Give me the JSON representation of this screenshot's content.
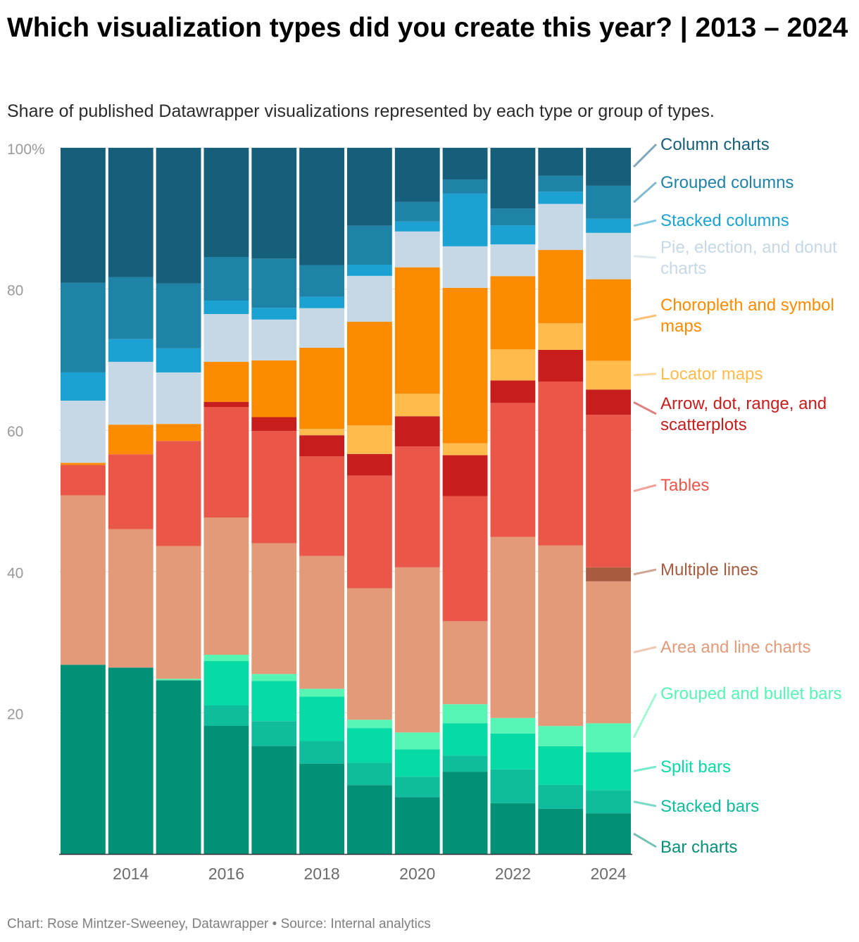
{
  "title": "Which visualization types did you create this year? | 2013 – 2024",
  "subtitle": "Share of published Datawrapper visualizations represented by each type or group of types.",
  "footer": "Chart: Rose Mintzer-Sweeney, Datawrapper • Source: Internal analytics",
  "chart_data": {
    "type": "bar",
    "stacked": true,
    "years": [
      2013,
      2014,
      2015,
      2016,
      2017,
      2018,
      2019,
      2020,
      2021,
      2022,
      2023,
      2024
    ],
    "x_tick_labels": [
      "2014",
      "2016",
      "2018",
      "2020",
      "2022",
      "2024"
    ],
    "y_ticks": [
      {
        "value": 100,
        "label": "100%"
      },
      {
        "value": 80,
        "label": "80"
      },
      {
        "value": 60,
        "label": "60"
      },
      {
        "value": 40,
        "label": "40"
      },
      {
        "value": 20,
        "label": "20"
      }
    ],
    "ylim": [
      0,
      100
    ],
    "legend_position": "right",
    "series": [
      {
        "name": "Bar charts",
        "color": "#029076",
        "values": [
          26.8,
          26.4,
          24.6,
          18.2,
          15.6,
          12.8,
          9.9,
          8.1,
          11.7,
          7.2,
          6.3,
          5.8
        ]
      },
      {
        "name": "Stacked bars",
        "color": "#0fbd9c",
        "values": [
          0,
          0,
          0,
          2.9,
          3.6,
          3.2,
          3.2,
          2.9,
          2.3,
          4.8,
          3.3,
          3.3
        ]
      },
      {
        "name": "Split bars",
        "color": "#06dba5",
        "values": [
          0,
          0,
          0,
          6.3,
          5.8,
          6.3,
          5.0,
          3.9,
          4.6,
          5.1,
          5.4,
          5.4
        ]
      },
      {
        "name": "Grouped and bullet bars",
        "color": "#57f5b4",
        "values": [
          0,
          0,
          0.2,
          0.9,
          1.0,
          1.1,
          1.2,
          2.4,
          2.7,
          2.2,
          2.8,
          4.1
        ]
      },
      {
        "name": "Area and line charts",
        "color": "#e39a79",
        "values": [
          24.0,
          19.6,
          18.8,
          19.5,
          18.9,
          18.8,
          18.9,
          23.5,
          11.8,
          25.7,
          25.1,
          20.2
        ]
      },
      {
        "name": "Multiple lines",
        "color": "#a85b3f",
        "values": [
          0,
          0,
          0,
          0,
          0,
          0,
          0,
          0,
          0,
          0,
          0,
          2.0
        ]
      },
      {
        "name": "Tables",
        "color": "#ea5648",
        "values": [
          4.3,
          10.6,
          14.9,
          15.7,
          16.2,
          14.1,
          16.2,
          17.2,
          17.8,
          19.0,
          22.8,
          21.7
        ]
      },
      {
        "name": "Arrow, dot, range, and scatterplots",
        "color": "#c81d1d",
        "values": [
          0,
          0,
          0,
          0.7,
          2.0,
          3.0,
          3.1,
          4.3,
          5.8,
          3.2,
          4.4,
          3.6
        ]
      },
      {
        "name": "Locator maps",
        "color": "#ffbb4b",
        "values": [
          0,
          0,
          0,
          0,
          0,
          0.9,
          4.1,
          3.2,
          1.7,
          4.4,
          3.7,
          4.1
        ]
      },
      {
        "name": "Choropleth and symbol maps",
        "color": "#fd8b00",
        "values": [
          0.3,
          4.2,
          2.4,
          5.7,
          8.2,
          11.5,
          14.9,
          18.0,
          22.1,
          10.4,
          10.2,
          11.6
        ]
      },
      {
        "name": "Pie, election, and donut charts",
        "color": "#c6d8e5",
        "values": [
          8.8,
          8.9,
          7.3,
          6.8,
          5.9,
          5.6,
          6.6,
          5.1,
          5.9,
          4.5,
          6.4,
          6.6
        ]
      },
      {
        "name": "Stacked columns",
        "color": "#1ba2d3",
        "values": [
          4.0,
          3.2,
          3.4,
          1.9,
          1.7,
          1.6,
          1.6,
          1.4,
          7.5,
          2.7,
          1.7,
          2.0
        ]
      },
      {
        "name": "Grouped columns",
        "color": "#1f82a7",
        "values": [
          12.7,
          8.8,
          9.2,
          6.2,
          7.1,
          4.5,
          5.6,
          2.8,
          2.0,
          2.4,
          2.2,
          4.7
        ]
      },
      {
        "name": "Column charts",
        "color": "#165f7b",
        "values": [
          19.1,
          18.3,
          19.2,
          15.5,
          16.0,
          16.6,
          11.2,
          7.7,
          4.5,
          8.6,
          3.9,
          5.4
        ]
      }
    ]
  }
}
